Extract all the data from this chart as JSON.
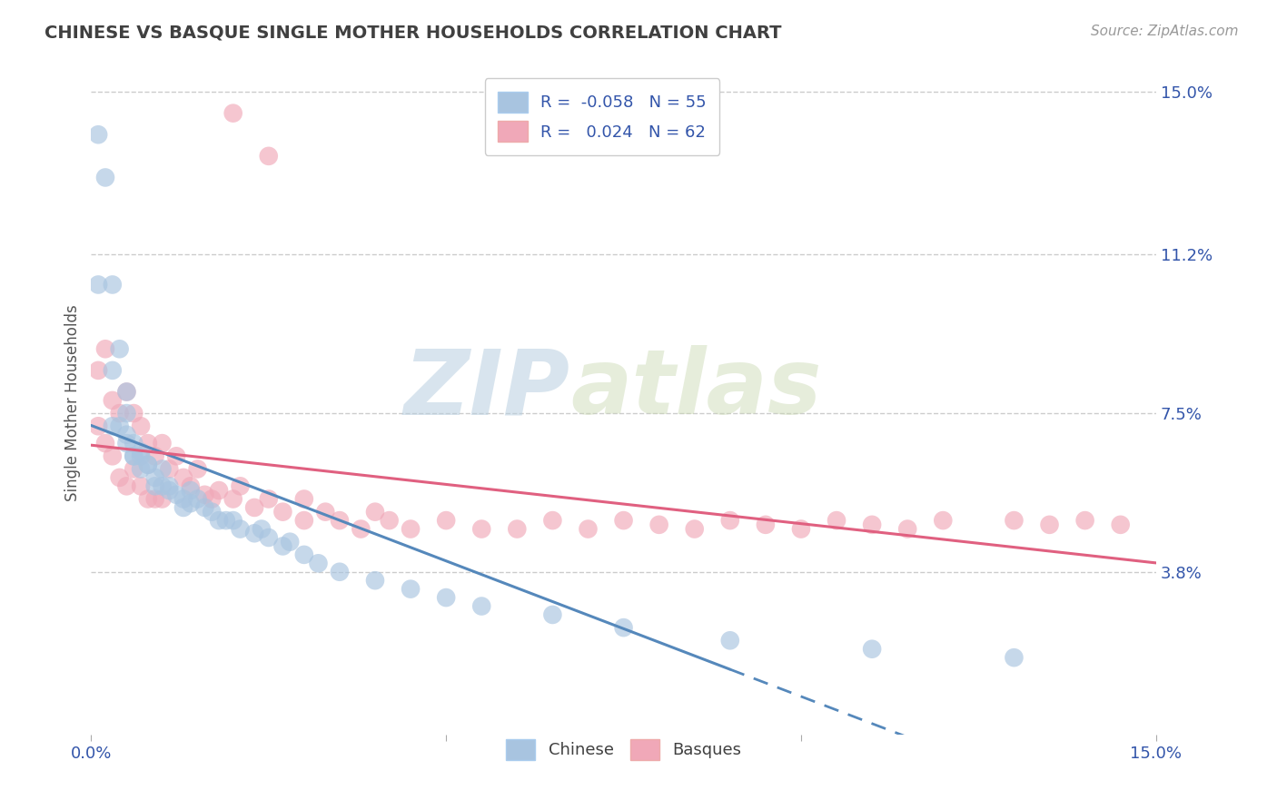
{
  "title": "CHINESE VS BASQUE SINGLE MOTHER HOUSEHOLDS CORRELATION CHART",
  "source": "Source: ZipAtlas.com",
  "ylabel": "Single Mother Households",
  "xlim": [
    0,
    0.15
  ],
  "ylim": [
    0.0,
    0.155
  ],
  "xtick_vals": [
    0.0,
    0.05,
    0.1,
    0.15
  ],
  "xtick_labels": [
    "0.0%",
    "",
    "",
    "15.0%"
  ],
  "ytick_vals_right": [
    0.038,
    0.075,
    0.112,
    0.15
  ],
  "ytick_labels_right": [
    "3.8%",
    "7.5%",
    "11.2%",
    "15.0%"
  ],
  "legend_R_chinese": "-0.058",
  "legend_N_chinese": "55",
  "legend_R_basque": "0.024",
  "legend_N_basque": "62",
  "color_chinese": "#a8c4e0",
  "color_basque": "#f0a8b8",
  "color_chinese_line": "#5588bb",
  "color_basque_line": "#e06080",
  "color_title": "#404040",
  "color_source": "#999999",
  "color_legend_text": "#3355aa",
  "color_axis_text": "#3355aa",
  "color_grid": "#cccccc",
  "background_color": "#ffffff",
  "watermark_zip": "ZIP",
  "watermark_atlas": "atlas",
  "line_solid_end_x": 0.09,
  "chinese_x": [
    0.001,
    0.002,
    0.001,
    0.003,
    0.004,
    0.003,
    0.005,
    0.005,
    0.003,
    0.004,
    0.005,
    0.006,
    0.005,
    0.006,
    0.007,
    0.007,
    0.008,
    0.006,
    0.007,
    0.008,
    0.009,
    0.01,
    0.009,
    0.01,
    0.011,
    0.012,
    0.011,
    0.013,
    0.014,
    0.013,
    0.015,
    0.014,
    0.016,
    0.018,
    0.017,
    0.019,
    0.021,
    0.02,
    0.023,
    0.025,
    0.024,
    0.027,
    0.03,
    0.028,
    0.032,
    0.035,
    0.04,
    0.045,
    0.05,
    0.055,
    0.065,
    0.075,
    0.09,
    0.11,
    0.13
  ],
  "chinese_y": [
    0.14,
    0.13,
    0.105,
    0.105,
    0.09,
    0.085,
    0.08,
    0.075,
    0.072,
    0.072,
    0.07,
    0.068,
    0.068,
    0.065,
    0.065,
    0.062,
    0.063,
    0.065,
    0.066,
    0.063,
    0.06,
    0.062,
    0.058,
    0.058,
    0.057,
    0.056,
    0.058,
    0.055,
    0.054,
    0.053,
    0.055,
    0.057,
    0.053,
    0.05,
    0.052,
    0.05,
    0.048,
    0.05,
    0.047,
    0.046,
    0.048,
    0.044,
    0.042,
    0.045,
    0.04,
    0.038,
    0.036,
    0.034,
    0.032,
    0.03,
    0.028,
    0.025,
    0.022,
    0.02,
    0.018
  ],
  "basque_x": [
    0.001,
    0.001,
    0.002,
    0.002,
    0.003,
    0.003,
    0.004,
    0.004,
    0.005,
    0.005,
    0.006,
    0.006,
    0.007,
    0.007,
    0.008,
    0.008,
    0.009,
    0.009,
    0.01,
    0.01,
    0.011,
    0.012,
    0.013,
    0.014,
    0.015,
    0.016,
    0.017,
    0.018,
    0.02,
    0.021,
    0.023,
    0.025,
    0.027,
    0.03,
    0.03,
    0.033,
    0.035,
    0.04,
    0.038,
    0.042,
    0.045,
    0.05,
    0.055,
    0.06,
    0.065,
    0.07,
    0.075,
    0.08,
    0.085,
    0.09,
    0.095,
    0.1,
    0.105,
    0.11,
    0.115,
    0.12,
    0.13,
    0.135,
    0.14,
    0.145,
    0.02,
    0.025
  ],
  "basque_y": [
    0.085,
    0.072,
    0.09,
    0.068,
    0.078,
    0.065,
    0.075,
    0.06,
    0.08,
    0.058,
    0.075,
    0.062,
    0.072,
    0.058,
    0.068,
    0.055,
    0.065,
    0.055,
    0.068,
    0.055,
    0.062,
    0.065,
    0.06,
    0.058,
    0.062,
    0.056,
    0.055,
    0.057,
    0.055,
    0.058,
    0.053,
    0.055,
    0.052,
    0.055,
    0.05,
    0.052,
    0.05,
    0.052,
    0.048,
    0.05,
    0.048,
    0.05,
    0.048,
    0.048,
    0.05,
    0.048,
    0.05,
    0.049,
    0.048,
    0.05,
    0.049,
    0.048,
    0.05,
    0.049,
    0.048,
    0.05,
    0.05,
    0.049,
    0.05,
    0.049,
    0.145,
    0.135
  ]
}
